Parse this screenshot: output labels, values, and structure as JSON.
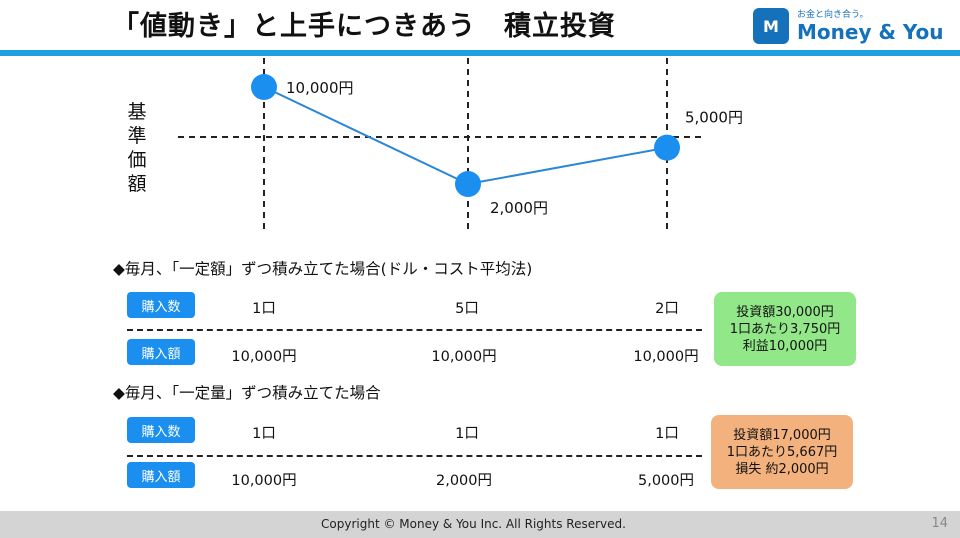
{
  "title": "「値動き」と上手につきあう　積立投資",
  "logo": {
    "tagline": "お金と向き合う。",
    "name": "Money & You",
    "mark": "M"
  },
  "chart": {
    "ylabel": "基準価額",
    "points": [
      {
        "label": "10,000円",
        "value": 10000
      },
      {
        "label": "2,000円",
        "value": 2000
      },
      {
        "label": "5,000円",
        "value": 5000
      }
    ]
  },
  "chart_data": {
    "type": "line",
    "x": [
      1,
      2,
      3
    ],
    "values": [
      10000,
      2000,
      5000
    ],
    "ylabel": "基準価額",
    "annotations": [
      "10,000円",
      "2,000円",
      "5,000円"
    ]
  },
  "sections": [
    {
      "heading": "◆毎月、「一定額」ずつ積み立てた場合(ドル・コスト平均法)",
      "count_label": "購入数",
      "amount_label": "購入額",
      "counts": [
        "1口",
        "5口",
        "2口"
      ],
      "amounts": [
        "10,000円",
        "10,000円",
        "10,000円"
      ],
      "summary": [
        "投資額30,000円",
        "1口あたり3,750円",
        "利益10,000円"
      ]
    },
    {
      "heading": "◆毎月、「一定量」ずつ積み立てた場合",
      "count_label": "購入数",
      "amount_label": "購入額",
      "counts": [
        "1口",
        "1口",
        "1口"
      ],
      "amounts": [
        "10,000円",
        "2,000円",
        "5,000円"
      ],
      "summary": [
        "投資額17,000円",
        "1口あたり5,667円",
        "損失 約2,000円"
      ]
    }
  ],
  "colors": {
    "accent": "#1ea0e6",
    "button": "#1a8fef",
    "marker": "#1a8fef",
    "profit": "#92e889",
    "loss": "#f3b27d"
  },
  "footer": {
    "copyright": "Copyright © Money & You Inc. All Rights Reserved.",
    "page": "14"
  }
}
